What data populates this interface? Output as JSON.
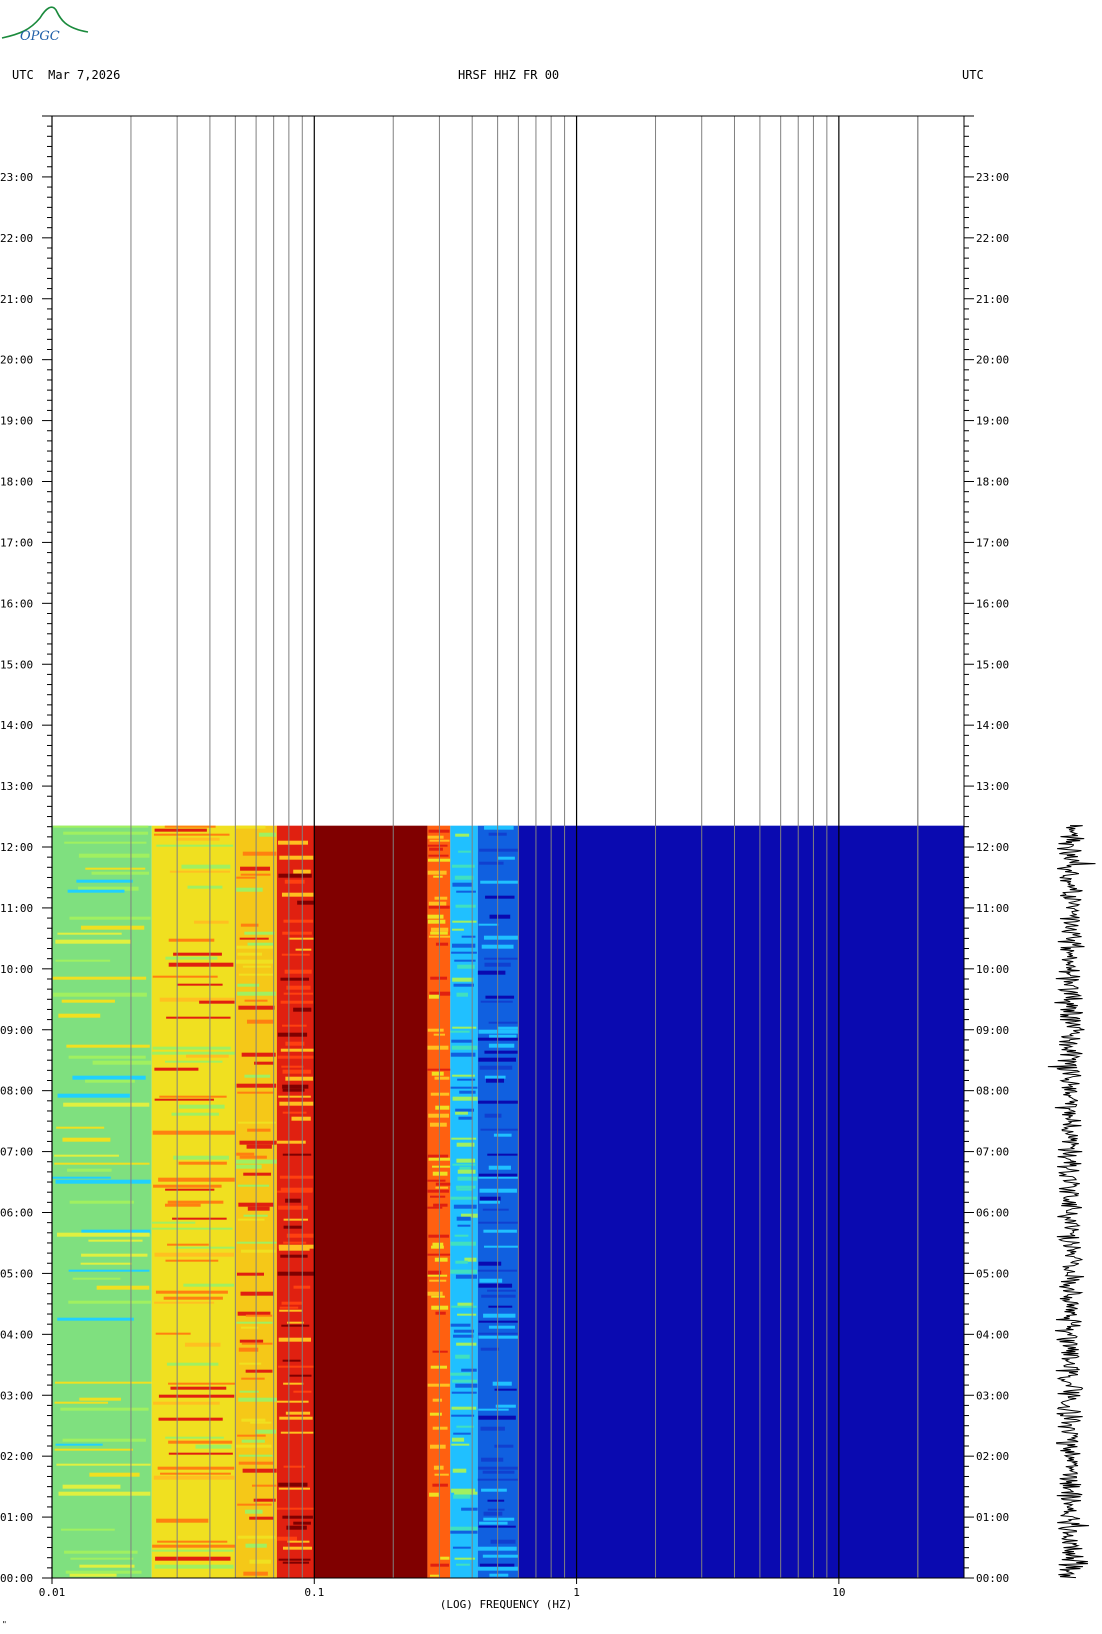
{
  "header": {
    "left": "UTC  Mar 7,2026",
    "center": "HRSF HHZ FR 00",
    "right": "UTC"
  },
  "logo": {
    "text": "OPGC",
    "color": "#1a8a3c",
    "text_color": "#1f5fa8"
  },
  "credit": "\"",
  "chart_data": {
    "type": "heatmap",
    "title": "HRSF HHZ FR 00",
    "xlabel": "(LOG) FREQUENCY (HZ)",
    "x_scale": "log",
    "xlim": [
      0.01,
      30
    ],
    "x_ticks": [
      0.01,
      0.1,
      1,
      10
    ],
    "x_tick_labels": [
      "0.01",
      "0.1",
      "1",
      "10"
    ],
    "y_unit": "UTC hour",
    "ylim": [
      0,
      24
    ],
    "y_ticks": [
      0,
      1,
      2,
      3,
      4,
      5,
      6,
      7,
      8,
      9,
      10,
      11,
      12,
      13,
      14,
      15,
      16,
      17,
      18,
      19,
      20,
      21,
      22,
      23
    ],
    "y_tick_labels": [
      "00:00",
      "01:00",
      "02:00",
      "03:00",
      "04:00",
      "05:00",
      "06:00",
      "07:00",
      "08:00",
      "09:00",
      "10:00",
      "11:00",
      "12:00",
      "13:00",
      "14:00",
      "15:00",
      "16:00",
      "17:00",
      "18:00",
      "19:00",
      "20:00",
      "21:00",
      "22:00",
      "23:00"
    ],
    "data_end_hour": 12.35,
    "spectral_bands": [
      {
        "f_min": 0.01,
        "f_max": 0.024,
        "color": "#7fe07f"
      },
      {
        "f_min": 0.024,
        "f_max": 0.05,
        "color": "#f0e020"
      },
      {
        "f_min": 0.05,
        "f_max": 0.072,
        "color": "#f5c818"
      },
      {
        "f_min": 0.072,
        "f_max": 0.1,
        "color": "#e02010"
      },
      {
        "f_min": 0.1,
        "f_max": 0.27,
        "color": "#800000"
      },
      {
        "f_min": 0.27,
        "f_max": 0.33,
        "color": "#ff6010"
      },
      {
        "f_min": 0.33,
        "f_max": 0.42,
        "color": "#20c0ff"
      },
      {
        "f_min": 0.42,
        "f_max": 0.6,
        "color": "#1060e0"
      },
      {
        "f_min": 0.6,
        "f_max": 30,
        "color": "#0a0ab0"
      }
    ],
    "colors": {
      "background": "#ffffff",
      "gridline": "#808080",
      "major_gridline": "#000000",
      "waveform": "#000000"
    }
  }
}
